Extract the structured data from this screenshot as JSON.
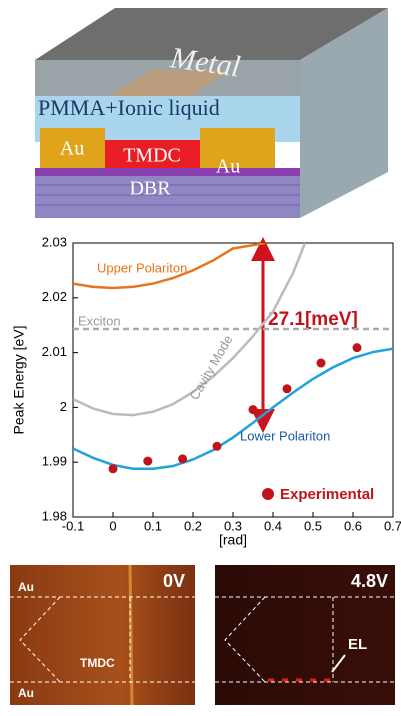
{
  "schematic": {
    "metal": "Metal",
    "pmma": "PMMA+Ionic liquid",
    "au_left": "Au",
    "tmdc": "TMDC",
    "au_right": "Au",
    "dbr": "DBR"
  },
  "chart_data": {
    "type": "line",
    "ylabel": "Peak Energy [eV]",
    "xlabel": "[rad]",
    "xlim": [
      -0.1,
      0.7
    ],
    "xticks": [
      -0.1,
      0,
      0.1,
      0.2,
      0.3,
      0.4,
      0.5,
      0.6,
      0.7
    ],
    "ylim": [
      1.98,
      2.03
    ],
    "yticks": [
      1.98,
      1.99,
      2,
      2.01,
      2.02,
      2.03
    ],
    "annotation": "27.1[meV]",
    "series": [
      {
        "name": "Upper Polariton",
        "color": "#e8741f",
        "style": "solid",
        "x": [
          -0.1,
          -0.05,
          0,
          0.05,
          0.1,
          0.15,
          0.2,
          0.25,
          0.3,
          0.35,
          0.38
        ],
        "values": [
          2.0226,
          2.022,
          2.0218,
          2.022,
          2.0226,
          2.0236,
          2.025,
          2.0268,
          2.029,
          2.0296,
          2.03
        ]
      },
      {
        "name": "Exciton",
        "color": "#aaaaaa",
        "style": "dashed",
        "x": [
          -0.1,
          0.7
        ],
        "values": [
          2.0143,
          2.0143
        ]
      },
      {
        "name": "Cavity Mode",
        "color": "#bbbbbb",
        "style": "solid",
        "x": [
          -0.1,
          -0.05,
          0,
          0.05,
          0.1,
          0.15,
          0.2,
          0.25,
          0.3,
          0.35,
          0.4,
          0.45,
          0.48
        ],
        "values": [
          2.0015,
          1.9998,
          1.9988,
          1.9986,
          1.9992,
          2.0006,
          2.0028,
          2.0056,
          2.009,
          2.013,
          2.0175,
          2.0245,
          2.03
        ]
      },
      {
        "name": "Lower Polariton",
        "color": "#1fa3d8",
        "style": "solid",
        "x": [
          -0.1,
          -0.05,
          0,
          0.05,
          0.1,
          0.15,
          0.2,
          0.25,
          0.3,
          0.35,
          0.4,
          0.45,
          0.5,
          0.55,
          0.6,
          0.65,
          0.7
        ],
        "values": [
          1.9925,
          1.9908,
          1.9895,
          1.9888,
          1.9888,
          1.9893,
          1.9905,
          1.9922,
          1.9945,
          1.9972,
          2.0,
          2.0027,
          2.0052,
          2.0073,
          2.009,
          2.0101,
          2.0107
        ]
      },
      {
        "name": "Experimental",
        "color": "#c0141c",
        "style": "points",
        "x": [
          0,
          0.087,
          0.174,
          0.26,
          0.35,
          0.435,
          0.52,
          0.61
        ],
        "values": [
          1.9888,
          1.9902,
          1.9906,
          1.9929,
          1.9996,
          2.0034,
          2.0081,
          2.0109
        ]
      }
    ]
  },
  "images": {
    "left": {
      "voltage": "0V",
      "au_top": "Au",
      "au_bottom": "Au",
      "tmdc": "TMDC"
    },
    "right": {
      "voltage": "4.8V",
      "el": "EL"
    }
  }
}
